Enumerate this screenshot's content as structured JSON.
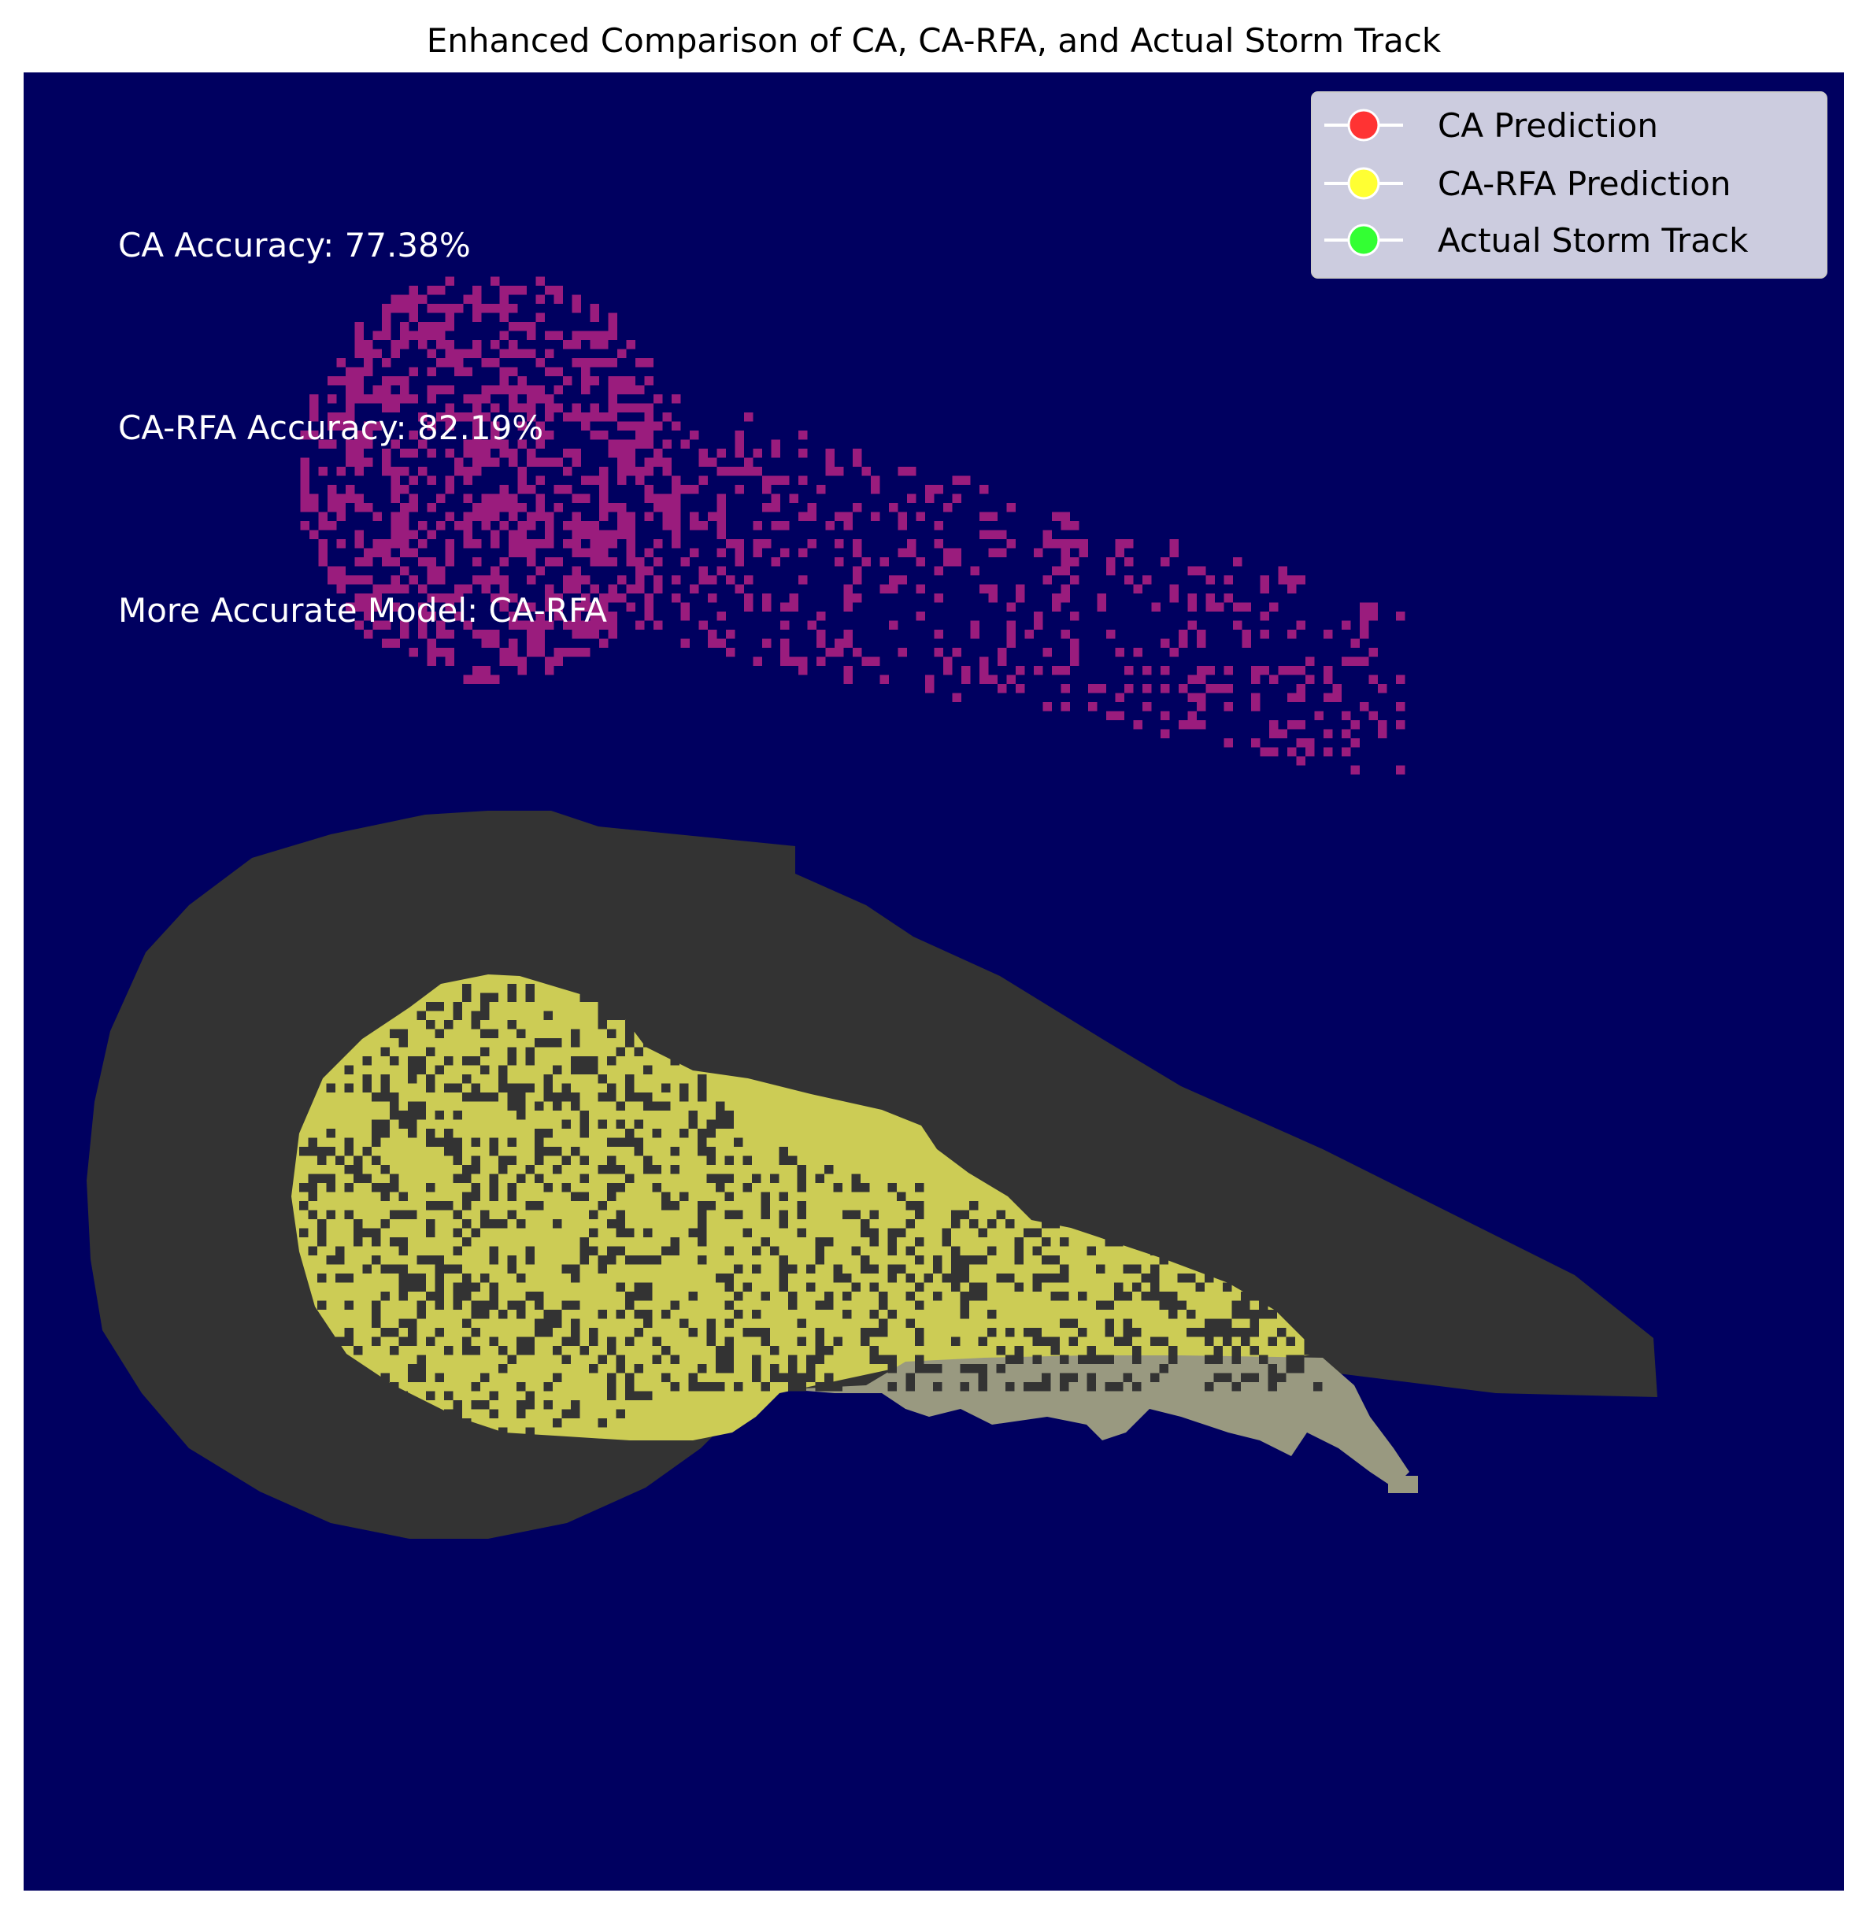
{
  "chart_data": {
    "type": "heatmap",
    "title": "Enhanced Comparison of CA, CA-RFA, and Actual Storm Track",
    "xlabel": "",
    "ylabel": "",
    "axes_visible": false,
    "grid": false,
    "legend_placement": "top-right",
    "colors": {
      "background": "#000060",
      "ca_prediction": "#9a1c7d",
      "ca_rfa_prediction": "#cccc55",
      "actual_storm_track": "#333333",
      "overlap": "#999980"
    },
    "legend": [
      {
        "label": "CA Prediction",
        "color": "#ff3333"
      },
      {
        "label": "CA-RFA Prediction",
        "color": "#ffff33"
      },
      {
        "label": "Actual Storm Track",
        "color": "#33ff33"
      }
    ],
    "annotations": [
      {
        "text": "CA Accuracy: 77.38%"
      },
      {
        "text": "CA-RFA Accuracy: 82.19%"
      },
      {
        "text": "More Accurate Model: CA-RFA"
      }
    ],
    "metrics": {
      "ca_accuracy_percent": 77.38,
      "ca_rfa_accuracy_percent": 82.19,
      "more_accurate_model": "CA-RFA"
    }
  }
}
